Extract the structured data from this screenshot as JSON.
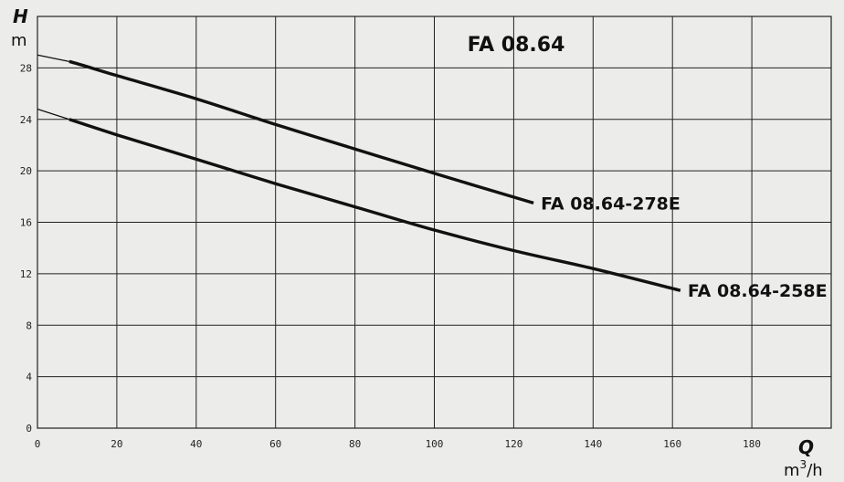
{
  "chart_data": {
    "type": "line",
    "title": "FA 08.64",
    "y_axis": {
      "symbol": "H",
      "unit": "m",
      "range": [
        0,
        32
      ],
      "ticks": [
        0,
        4,
        8,
        12,
        16,
        20,
        24,
        28
      ]
    },
    "x_axis": {
      "symbol": "Q",
      "unit_base": "m",
      "unit_sup": "3",
      "unit_tail": "/h",
      "range": [
        0,
        200
      ],
      "ticks": [
        0,
        20,
        40,
        60,
        80,
        100,
        120,
        140,
        160,
        180
      ]
    },
    "grid": true,
    "series": [
      {
        "name": "FA 08.64-278E",
        "x": [
          0,
          8,
          20,
          40,
          60,
          80,
          100,
          125
        ],
        "y": [
          29.0,
          28.5,
          27.4,
          25.6,
          23.6,
          21.7,
          19.8,
          17.5
        ]
      },
      {
        "name": "FA 08.64-258E",
        "x": [
          0,
          8,
          20,
          40,
          60,
          80,
          100,
          120,
          140,
          162
        ],
        "y": [
          24.8,
          24.0,
          22.8,
          20.9,
          19.0,
          17.2,
          15.4,
          13.8,
          12.4,
          10.7
        ]
      }
    ]
  }
}
